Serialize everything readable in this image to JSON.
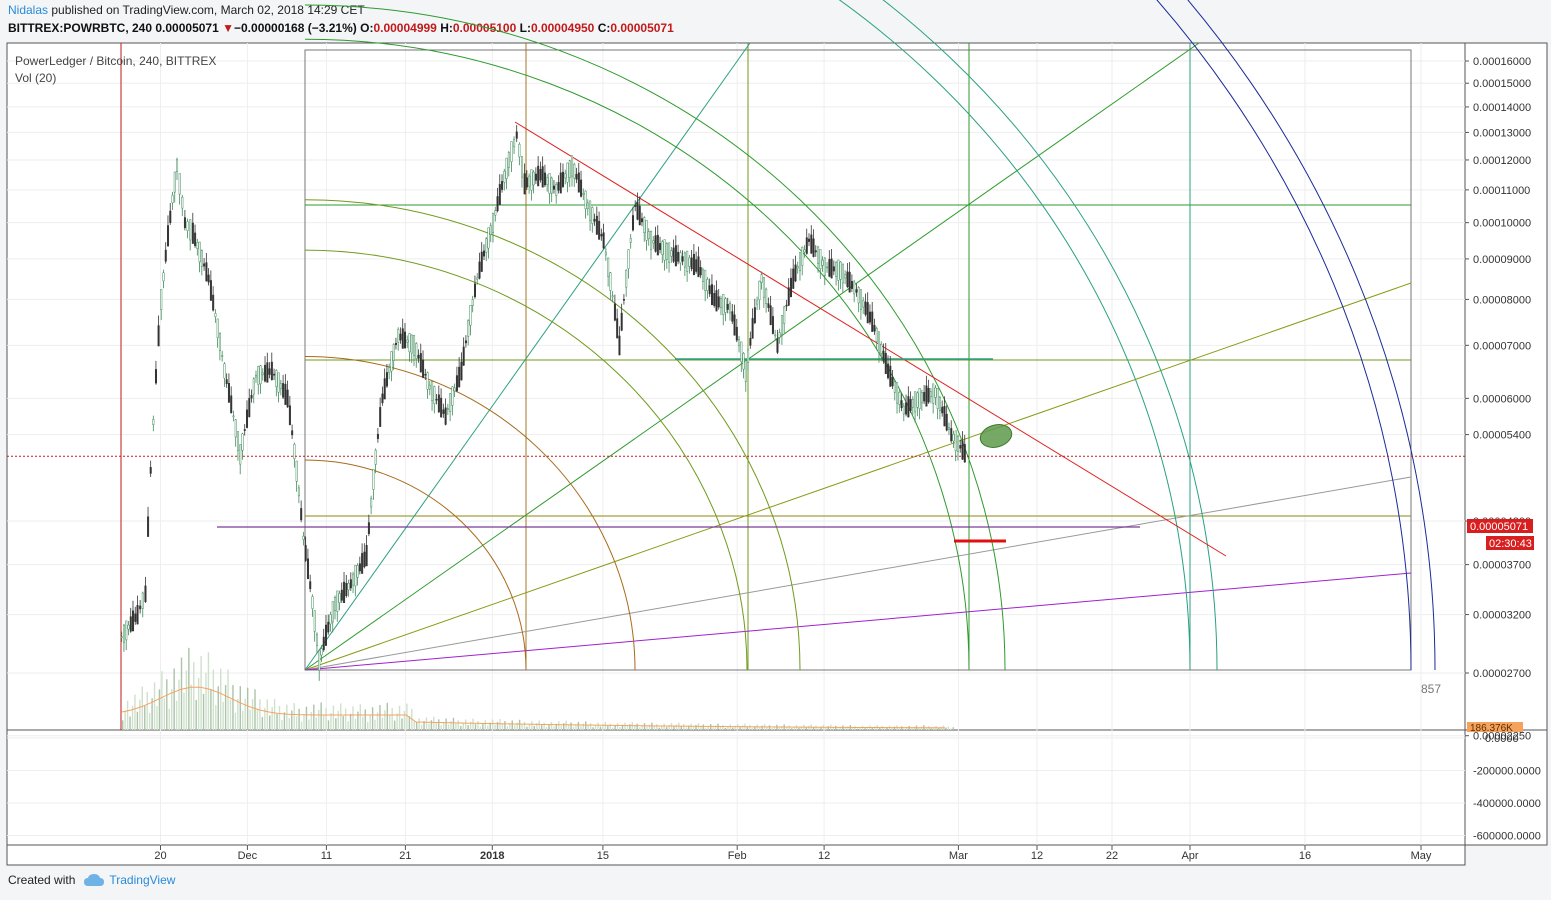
{
  "header": {
    "author": "Nidalas",
    "published": "published on TradingView.com, March 02, 2018 14:29 CET",
    "symbol": "BITTREX:POWRBTC, 240",
    "last": "0.00005071",
    "change": "−0.00000168 (−3.21%)",
    "o_label": "O:",
    "o": "0.00004999",
    "h_label": "H:",
    "h": "0.00005100",
    "l_label": "L:",
    "l": "0.00004950",
    "c_label": "C:",
    "c": "0.00005071"
  },
  "legend": {
    "title": "PowerLedger / Bitcoin, 240, BITTREX",
    "volume": "Vol (20)"
  },
  "footer": {
    "created_with": "Created with",
    "brand": "TradingView"
  },
  "colors": {
    "up": "#3d8a5a",
    "down": "#333333",
    "price_line": "#c21a1a"
  },
  "chart_data": {
    "type": "candlestick",
    "y_axis_ticks": [
      "0.00016000",
      "0.00015000",
      "0.00014000",
      "0.00013000",
      "0.00012000",
      "0.00011000",
      "0.00010000",
      "0.00009000",
      "0.00008000",
      "0.00007000",
      "0.00006000",
      "0.00005400",
      "0.00004200",
      "0.00003700",
      "0.00003200",
      "0.00002700",
      "0.00002250"
    ],
    "y_axis_scale": "log",
    "x_axis_ticks": [
      "20",
      "Dec",
      "11",
      "21",
      "2018",
      "15",
      "Feb",
      "12",
      "Mar",
      "12",
      "22",
      "Apr",
      "16",
      "May"
    ],
    "last_price_label": "0.00005071",
    "countdown_label": "02:30:43",
    "volume_label": "186.376K",
    "bar_count_label": "857",
    "oscillator_ticks": [
      "0.0000",
      "-200000.0000",
      "-400000.0000",
      "-600000.0000"
    ],
    "price_path": [
      [
        "Nov 15",
        3e-05
      ],
      [
        "Nov 17",
        3.2e-05
      ],
      [
        "Nov 18",
        3.4e-05
      ],
      [
        "Nov 19",
        5.6e-05
      ],
      [
        "Nov 20",
        8e-05
      ],
      [
        "Nov 22",
        0.000118
      ],
      [
        "Nov 23",
        0.0001
      ],
      [
        "Nov 24",
        9.7e-05
      ],
      [
        "Nov 26",
        8.5e-05
      ],
      [
        "Nov 28",
        6.5e-05
      ],
      [
        "Nov 30",
        5.1e-05
      ],
      [
        "Dec 2",
        6.4e-05
      ],
      [
        "Dec 4",
        6.5e-05
      ],
      [
        "Dec 6",
        6e-05
      ],
      [
        "Dec 8",
        4e-05
      ],
      [
        "Dec 10",
        2.8e-05
      ],
      [
        "Dec 12",
        3.3e-05
      ],
      [
        "Dec 14",
        3.5e-05
      ],
      [
        "Dec 16",
        3.8e-05
      ],
      [
        "Dec 18",
        6e-05
      ],
      [
        "Dec 20",
        7.2e-05
      ],
      [
        "Dec 22",
        7e-05
      ],
      [
        "Dec 24",
        6.2e-05
      ],
      [
        "Dec 26",
        5.7e-05
      ],
      [
        "Dec 28",
        6.5e-05
      ],
      [
        "Dec 30",
        8.5e-05
      ],
      [
        "Jan 1",
        0.0001
      ],
      [
        "Jan 3",
        0.00012
      ],
      [
        "Jan 4",
        0.000129
      ],
      [
        "Jan 5",
        0.000112
      ],
      [
        "Jan 7",
        0.000115
      ],
      [
        "Jan 9",
        0.00011
      ],
      [
        "Jan 11",
        0.000118
      ],
      [
        "Jan 13",
        0.000105
      ],
      [
        "Jan 15",
        9.5e-05
      ],
      [
        "Jan 17",
        7e-05
      ],
      [
        "Jan 19",
        0.000105
      ],
      [
        "Jan 21",
        9.5e-05
      ],
      [
        "Jan 23",
        9.2e-05
      ],
      [
        "Jan 25",
        9e-05
      ],
      [
        "Jan 27",
        8.8e-05
      ],
      [
        "Jan 29",
        8e-05
      ],
      [
        "Jan 31",
        7.8e-05
      ],
      [
        "Feb 2",
        6.5e-05
      ],
      [
        "Feb 4",
        8.5e-05
      ],
      [
        "Feb 6",
        7e-05
      ],
      [
        "Feb 8",
        8.5e-05
      ],
      [
        "Feb 10",
        9.5e-05
      ],
      [
        "Feb 12",
        8.8e-05
      ],
      [
        "Feb 14",
        8.7e-05
      ],
      [
        "Feb 16",
        8.2e-05
      ],
      [
        "Feb 18",
        7.5e-05
      ],
      [
        "Feb 20",
        6.5e-05
      ],
      [
        "Feb 22",
        5.8e-05
      ],
      [
        "Feb 24",
        6e-05
      ],
      [
        "Feb 26",
        6.1e-05
      ],
      [
        "Feb 28",
        5.4e-05
      ],
      [
        "Mar 2",
        5.07e-05
      ]
    ]
  }
}
